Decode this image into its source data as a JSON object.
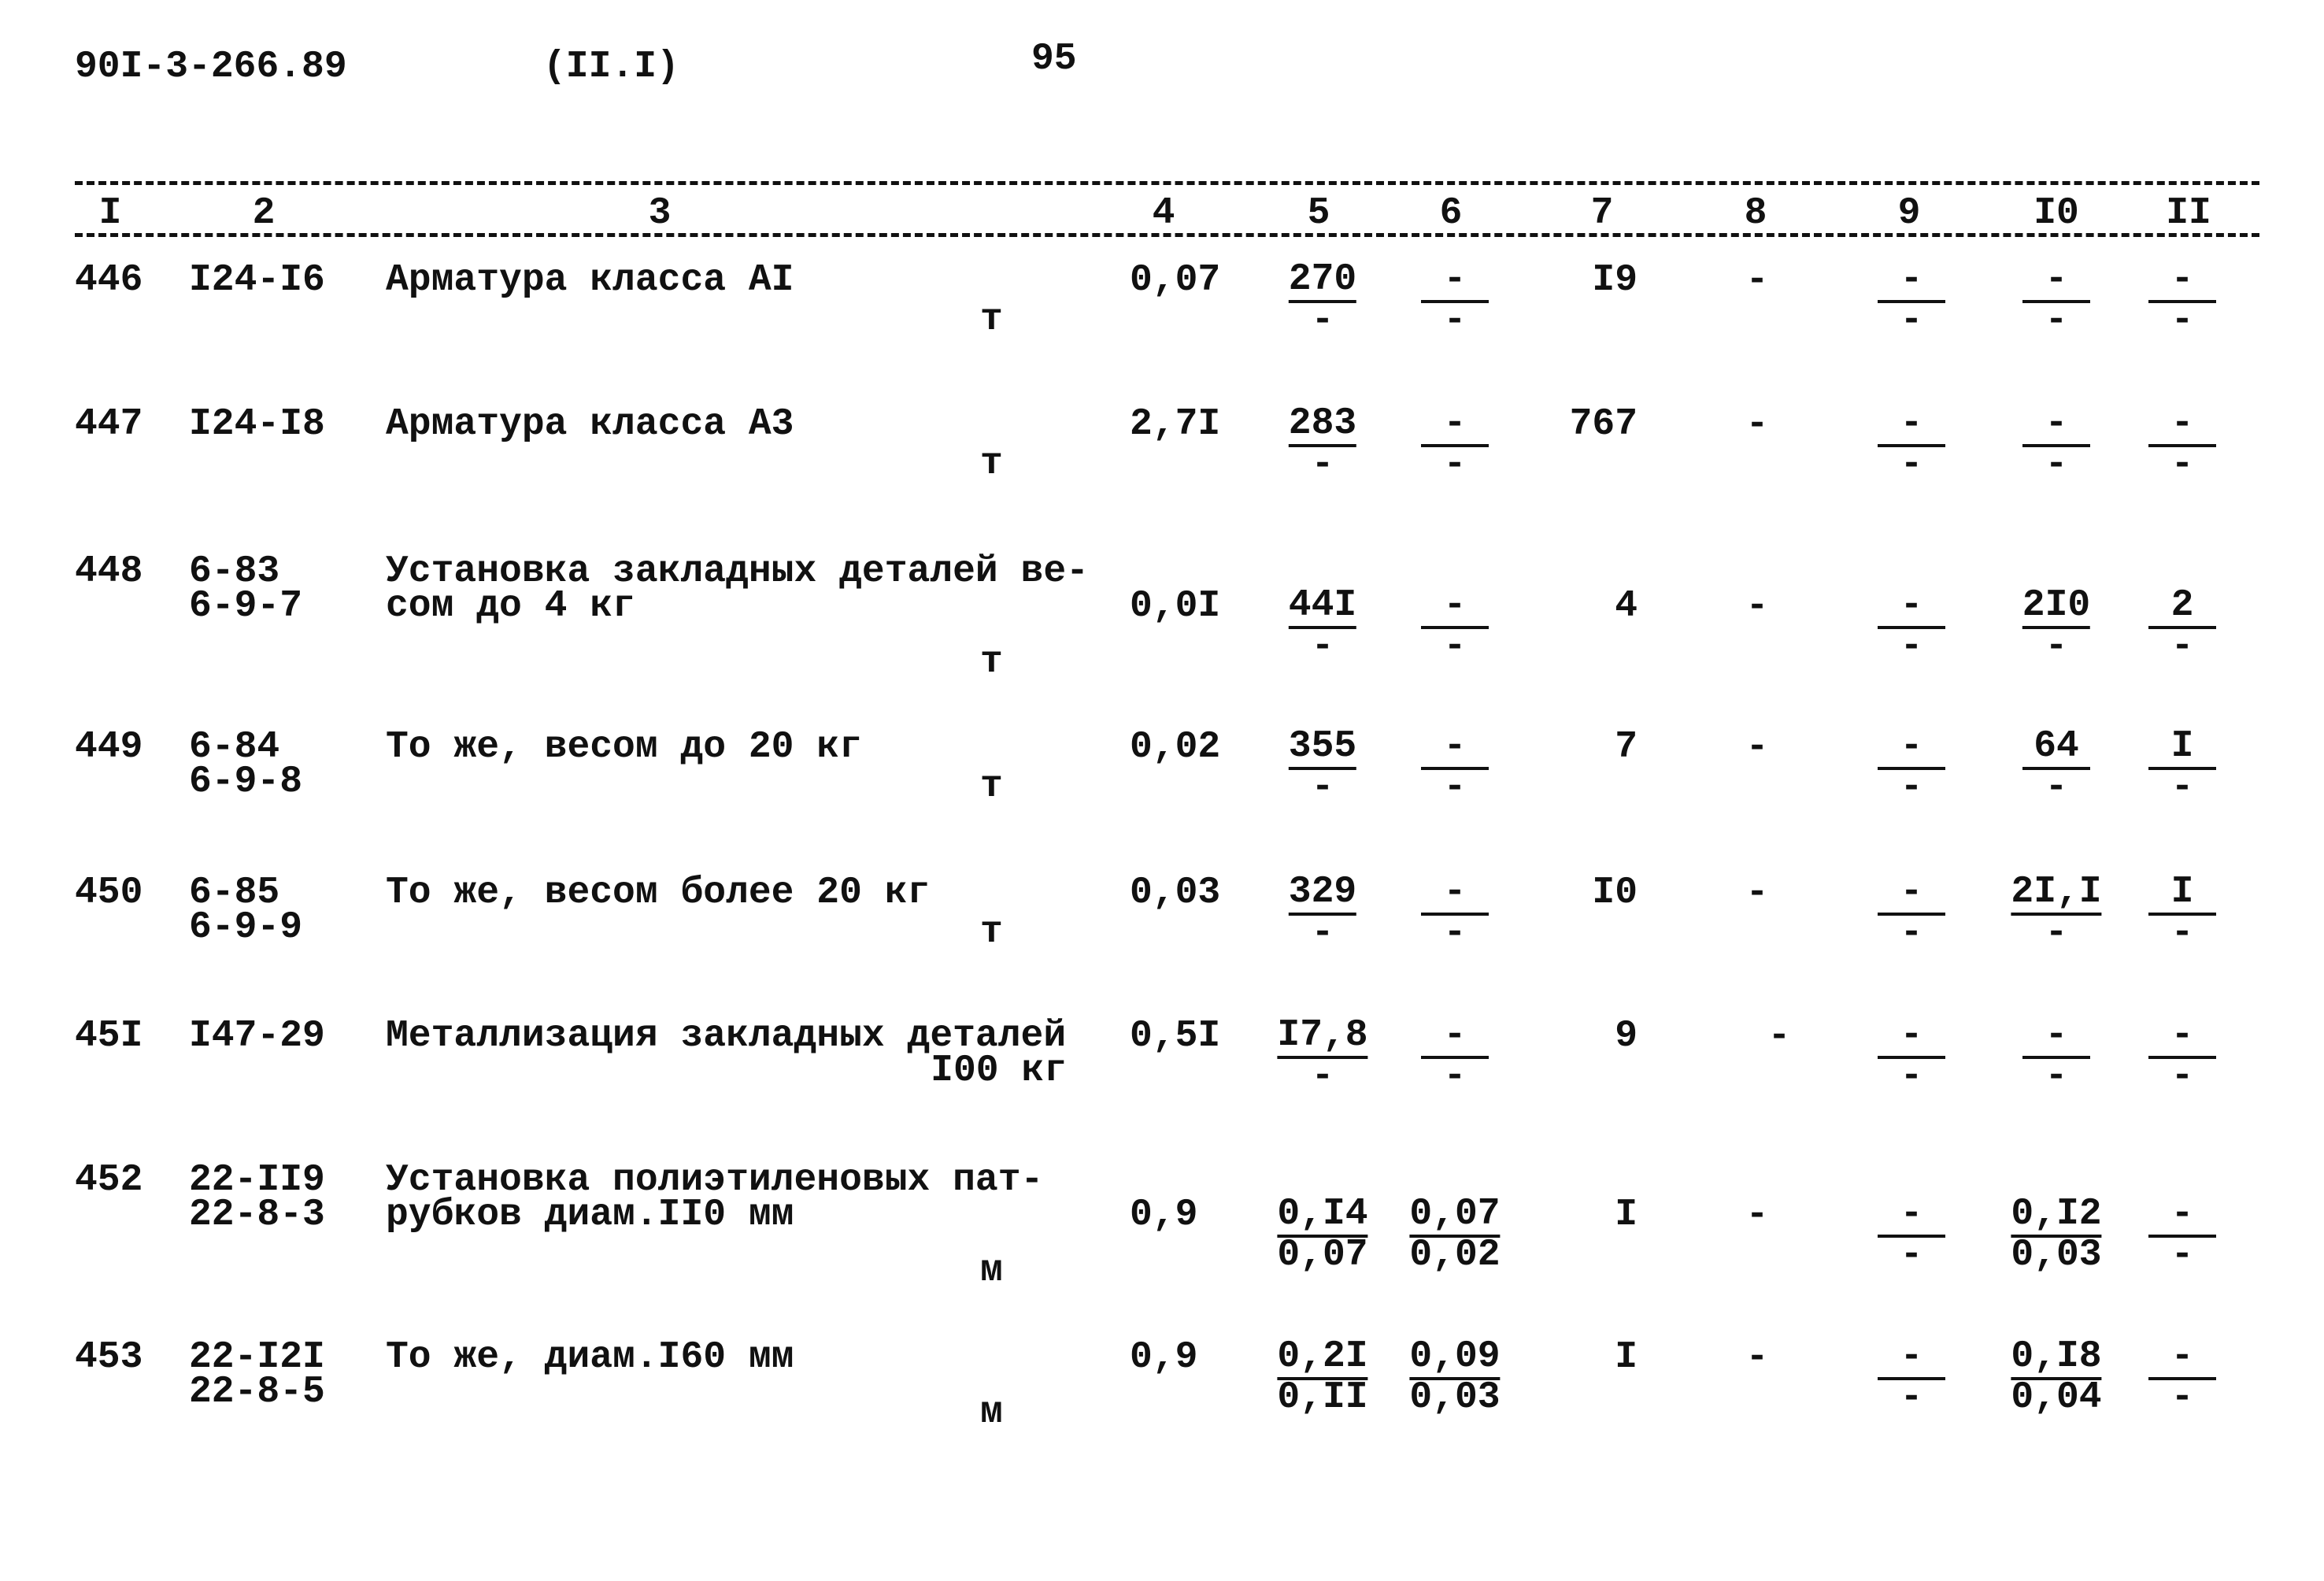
{
  "header": {
    "doc_code": "90I-3-266.89",
    "section": "(II.I)",
    "page": "95"
  },
  "columns": [
    "I",
    "2",
    "3",
    "4",
    "5",
    "6",
    "7",
    "8",
    "9",
    "I0",
    "II"
  ],
  "rows": [
    {
      "num": "446",
      "code": [
        "I24-I6"
      ],
      "name": [
        "Арматура класса AI"
      ],
      "unit": "т",
      "c4": "0,07",
      "c5": {
        "top": "270",
        "bottom": "-"
      },
      "c6": {
        "top": "-",
        "bottom": "-"
      },
      "c7": "I9",
      "c8": "-",
      "c9": {
        "top": "-",
        "bottom": "-"
      },
      "c10": {
        "top": "-",
        "bottom": "-"
      },
      "c11": {
        "top": "-",
        "bottom": "-"
      }
    },
    {
      "num": "447",
      "code": [
        "I24-I8"
      ],
      "name": [
        "Арматура класса A3"
      ],
      "unit": "т",
      "c4": "2,7I",
      "c5": {
        "top": "283",
        "bottom": "-"
      },
      "c6": {
        "top": "-",
        "bottom": "-"
      },
      "c7": "767",
      "c8": "-",
      "c9": {
        "top": "-",
        "bottom": "-"
      },
      "c10": {
        "top": "-",
        "bottom": "-"
      },
      "c11": {
        "top": "-",
        "bottom": "-"
      }
    },
    {
      "num": "448",
      "code": [
        "6-83",
        "6-9-7"
      ],
      "name": [
        "Установка закладных деталей ве-",
        "сом до 4 кг"
      ],
      "unit": "т",
      "c4": "0,0I",
      "c5": {
        "top": "44I",
        "bottom": "-"
      },
      "c6": {
        "top": "-",
        "bottom": "-"
      },
      "c7": "4",
      "c8": "-",
      "c9": {
        "top": "-",
        "bottom": "-"
      },
      "c10": {
        "top": "2I0",
        "bottom": "-"
      },
      "c11": {
        "top": "2",
        "bottom": "-"
      }
    },
    {
      "num": "449",
      "code": [
        "6-84",
        "6-9-8"
      ],
      "name": [
        "То же, весом до 20 кг"
      ],
      "unit": "т",
      "c4": "0,02",
      "c5": {
        "top": "355",
        "bottom": "-"
      },
      "c6": {
        "top": "-",
        "bottom": "-"
      },
      "c7": "7",
      "c8": "-",
      "c9": {
        "top": "-",
        "bottom": "-"
      },
      "c10": {
        "top": "64",
        "bottom": "-"
      },
      "c11": {
        "top": "I",
        "bottom": "-"
      }
    },
    {
      "num": "450",
      "code": [
        "6-85",
        "6-9-9"
      ],
      "name": [
        "То же, весом более 20 кг"
      ],
      "unit": "т",
      "c4": "0,03",
      "c5": {
        "top": "329",
        "bottom": "-"
      },
      "c6": {
        "top": "-",
        "bottom": "-"
      },
      "c7": "I0",
      "c8": "-",
      "c9": {
        "top": "-",
        "bottom": "-"
      },
      "c10": {
        "top": "2I,I",
        "bottom": "-"
      },
      "c11": {
        "top": "I",
        "bottom": "-"
      }
    },
    {
      "num": "45I",
      "code": [
        "I47-29"
      ],
      "name": [
        "Металлизация закладных деталей"
      ],
      "unit": "I00 кг",
      "c4": "0,5I",
      "c5": {
        "top": "I7,8",
        "bottom": "-"
      },
      "c6": {
        "top": "-",
        "bottom": "-"
      },
      "c7": "9",
      "c8": "-",
      "c9": {
        "top": "-",
        "bottom": "-"
      },
      "c10": {
        "top": "-",
        "bottom": "-"
      },
      "c11": {
        "top": "-",
        "bottom": "-"
      }
    },
    {
      "num": "452",
      "code": [
        "22-II9",
        "22-8-3"
      ],
      "name": [
        "Установка полиэтиленовых пат-",
        "рубков диам.II0 мм"
      ],
      "unit": "м",
      "c4": "0,9",
      "c5": {
        "top": "0,I4",
        "bottom": "0,07"
      },
      "c6": {
        "top": "0,07",
        "bottom": "0,02"
      },
      "c7": "I",
      "c8": "-",
      "c9": {
        "top": "-",
        "bottom": "-"
      },
      "c10": {
        "top": "0,I2",
        "bottom": "0,03"
      },
      "c11": {
        "top": "-",
        "bottom": "-"
      }
    },
    {
      "num": "453",
      "code": [
        "22-I2I",
        "22-8-5"
      ],
      "name": [
        "То же, диам.I60 мм"
      ],
      "unit": "м",
      "c4": "0,9",
      "c5": {
        "top": "0,2I",
        "bottom": "0,II"
      },
      "c6": {
        "top": "0,09",
        "bottom": "0,03"
      },
      "c7": "I",
      "c8": "-",
      "c9": {
        "top": "-",
        "bottom": "-"
      },
      "c10": {
        "top": "0,I8",
        "bottom": "0,04"
      },
      "c11": {
        "top": "-",
        "bottom": "-"
      }
    }
  ]
}
